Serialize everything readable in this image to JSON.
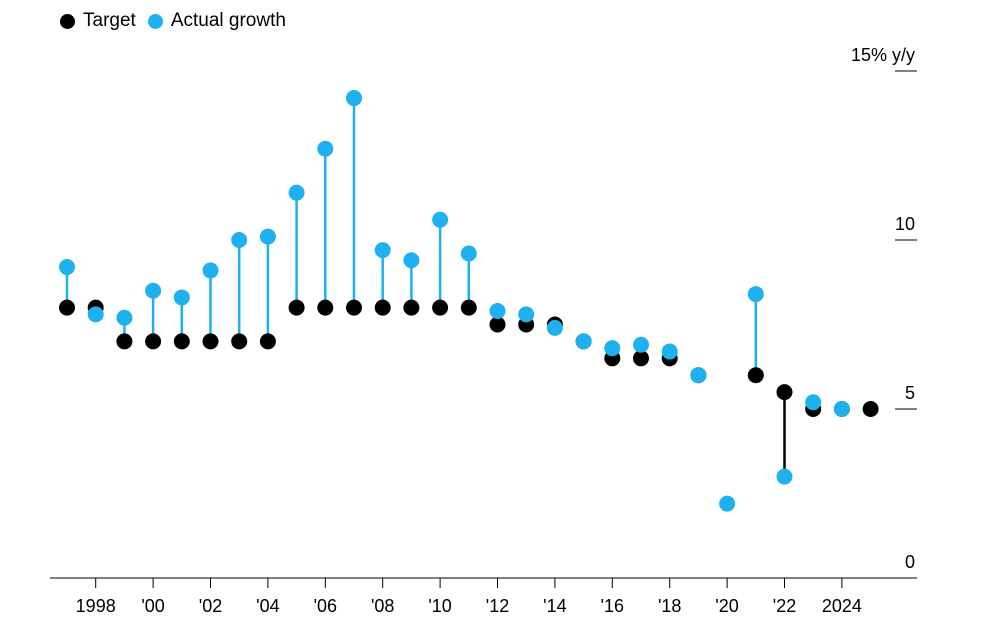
{
  "chart_data": {
    "type": "scatter",
    "title": "",
    "legend": {
      "position": "top-left",
      "entries": [
        "Target",
        "Actual growth"
      ]
    },
    "colors": {
      "target": "#000000",
      "actual": "#1fb0f0"
    },
    "xlabel": "",
    "ylabel": "",
    "ylim": [
      0,
      15
    ],
    "xlim": [
      1997,
      2025
    ],
    "y_ticks": [
      {
        "value": 15,
        "label": "15% y/y"
      },
      {
        "value": 10,
        "label": "10"
      },
      {
        "value": 5,
        "label": "5"
      },
      {
        "value": 0,
        "label": "0"
      }
    ],
    "x_ticks": [
      {
        "value": 1998,
        "label": "1998"
      },
      {
        "value": 2000,
        "label": "'00"
      },
      {
        "value": 2002,
        "label": "'02"
      },
      {
        "value": 2004,
        "label": "'04"
      },
      {
        "value": 2006,
        "label": "'06"
      },
      {
        "value": 2008,
        "label": "'08"
      },
      {
        "value": 2010,
        "label": "'10"
      },
      {
        "value": 2012,
        "label": "'12"
      },
      {
        "value": 2014,
        "label": "'14"
      },
      {
        "value": 2016,
        "label": "'16"
      },
      {
        "value": 2018,
        "label": "'18"
      },
      {
        "value": 2020,
        "label": "'20"
      },
      {
        "value": 2022,
        "label": "'22"
      },
      {
        "value": 2024,
        "label": "2024"
      }
    ],
    "x": [
      1997,
      1998,
      1999,
      2000,
      2001,
      2002,
      2003,
      2004,
      2005,
      2006,
      2007,
      2008,
      2009,
      2010,
      2011,
      2012,
      2013,
      2014,
      2015,
      2016,
      2017,
      2018,
      2019,
      2020,
      2021,
      2022,
      2023,
      2024,
      2025
    ],
    "series": [
      {
        "name": "Target",
        "values": [
          8,
          8,
          7,
          7,
          7,
          7,
          7,
          7,
          8,
          8,
          8,
          8,
          8,
          8,
          8,
          7.5,
          7.5,
          7.5,
          7,
          6.5,
          6.5,
          6.5,
          6,
          null,
          6,
          5.5,
          5,
          5,
          5
        ]
      },
      {
        "name": "Actual growth",
        "values": [
          9.2,
          7.8,
          7.7,
          8.5,
          8.3,
          9.1,
          10.0,
          10.1,
          11.4,
          12.7,
          14.2,
          9.7,
          9.4,
          10.6,
          9.6,
          7.9,
          7.8,
          7.4,
          7.0,
          6.8,
          6.9,
          6.7,
          6.0,
          2.2,
          8.4,
          3.0,
          5.2,
          5.0,
          null
        ]
      }
    ]
  }
}
